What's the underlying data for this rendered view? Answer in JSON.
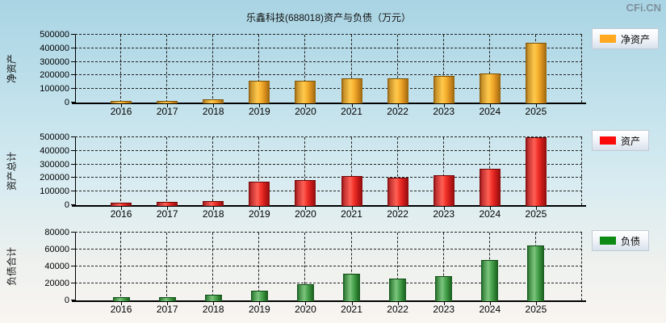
{
  "page": {
    "title": "乐鑫科技(688018)资产与负债（万元）",
    "watermark": "CFi.CN"
  },
  "colors": {
    "grid": "#222222",
    "axis": "#000000",
    "legend_swatch_orange": "#ffa820",
    "legend_swatch_red": "#fa0a0a",
    "legend_swatch_green": "#0c8a14"
  },
  "chart_data": [
    {
      "type": "bar",
      "title": "净资产",
      "ylabel": "净资产",
      "legend": "净资产",
      "categories": [
        "2016",
        "2017",
        "2018",
        "2019",
        "2020",
        "2021",
        "2022",
        "2023",
        "2024",
        "2025"
      ],
      "values": [
        8000,
        13000,
        26000,
        162000,
        160000,
        180000,
        181000,
        196000,
        216000,
        443000
      ],
      "ylim": [
        0,
        500000
      ],
      "ytick_step": 100000,
      "grid": "dashed",
      "legend_position": "right",
      "swatch_color": "#ffa820",
      "bar_gradient": [
        "#8a5c10",
        "#c8922a",
        "#ffc94e",
        "#f5b02e",
        "#d1891c",
        "#96660f"
      ],
      "bar_top_edge": "#7a5208"
    },
    {
      "type": "bar",
      "title": "资产总计",
      "ylabel": "资产总计",
      "legend": "资产",
      "categories": [
        "2016",
        "2017",
        "2018",
        "2019",
        "2020",
        "2021",
        "2022",
        "2023",
        "2024",
        "2025"
      ],
      "values": [
        15000,
        21000,
        31000,
        170000,
        184000,
        212000,
        205000,
        218000,
        268000,
        500000
      ],
      "ylim": [
        0,
        500000
      ],
      "ytick_step": 100000,
      "grid": "dashed",
      "legend_position": "right",
      "swatch_color": "#fa0a0a",
      "bar_gradient": [
        "#7c0a0a",
        "#c03030",
        "#ff6055",
        "#f03028",
        "#c41818",
        "#8a0e0e"
      ],
      "bar_top_edge": "#6e0808"
    },
    {
      "type": "bar",
      "title": "负债合计",
      "ylabel": "负债合计",
      "legend": "负债",
      "categories": [
        "2016",
        "2017",
        "2018",
        "2019",
        "2020",
        "2021",
        "2022",
        "2023",
        "2024",
        "2025"
      ],
      "values": [
        3400,
        3500,
        6500,
        11500,
        19500,
        31000,
        26000,
        29000,
        47500,
        65000
      ],
      "ylim": [
        0,
        80000
      ],
      "ytick_step": 20000,
      "grid": "dashed",
      "legend_position": "right",
      "swatch_color": "#0c8a14",
      "bar_gradient": [
        "#14521c",
        "#3d8a42",
        "#7cc47e",
        "#4ea854",
        "#2e8232",
        "#195a1f"
      ],
      "bar_top_edge": "#0f4a14"
    }
  ]
}
